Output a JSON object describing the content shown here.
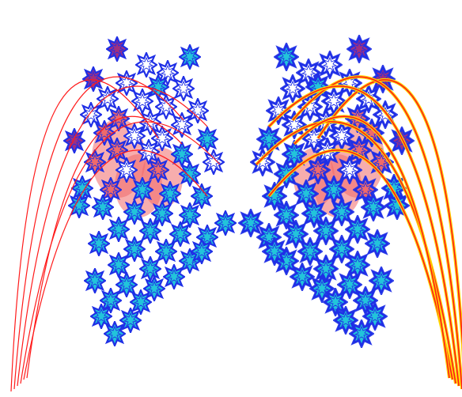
{
  "canvas": {
    "background": "#ffffff"
  },
  "colors": {
    "arc": "#ff1a1a",
    "arc_glow": "#ffd400",
    "ornament_outline": "#1f2fe6",
    "ornament_fill": "#22c4da",
    "ornament_inner_highlight": "#ffffff",
    "ornament_pink": "#f06a6a",
    "ornament_purple": "#a03080",
    "ornament_glow": "#ffae00"
  },
  "panels": [
    {
      "name": "left-panel",
      "mirrored": false,
      "glow": false
    },
    {
      "name": "right-panel",
      "mirrored": true,
      "glow": true
    }
  ],
  "icons": {
    "ornament": "star-burst-icon",
    "arc": "curve-arc"
  }
}
